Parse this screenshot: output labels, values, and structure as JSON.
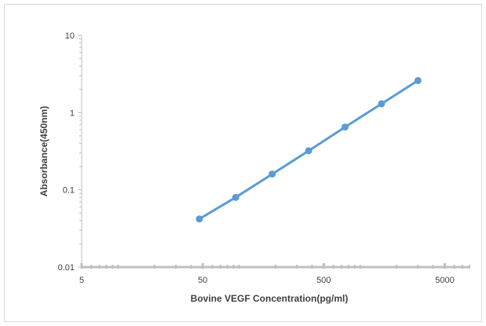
{
  "chart_data": {
    "type": "line",
    "title": "",
    "xlabel": "Bovine VEGF Concentration(pg/ml)",
    "ylabel": "Absorbance(450nm)",
    "x_scale": "log",
    "y_scale": "log",
    "xlim": [
      5,
      8000
    ],
    "ylim": [
      0.01,
      10
    ],
    "x_ticks": [
      5,
      50,
      500,
      5000
    ],
    "x_tick_labels": [
      "5",
      "50",
      "500",
      "5000"
    ],
    "y_ticks": [
      0.01,
      0.1,
      1,
      10
    ],
    "y_tick_labels": [
      "0.01",
      "0.1",
      "1",
      "10"
    ],
    "grid": false,
    "legend": "none",
    "series": [
      {
        "x": [
          46.9,
          93.75,
          187.5,
          375,
          750,
          1500,
          3000
        ],
        "y": [
          0.042,
          0.08,
          0.16,
          0.32,
          0.65,
          1.3,
          2.6
        ],
        "color": "#5b9bd5"
      }
    ]
  }
}
